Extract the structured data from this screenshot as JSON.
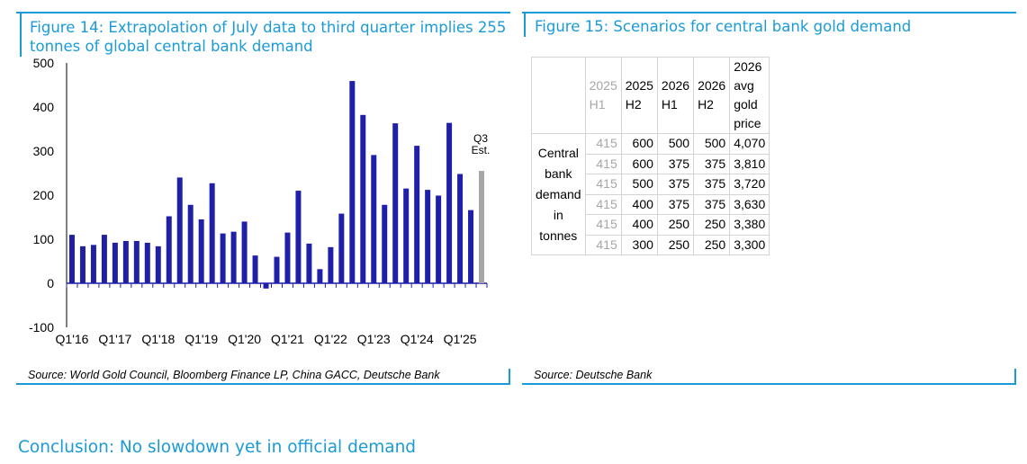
{
  "figure14": {
    "title_line1": "Figure 14: Extrapolation of July data to third quarter implies 255",
    "title_line2": "tonnes of global central bank demand",
    "source": "Source: World Gold Council, Bloomberg Finance LP, China GACC, Deutsche Bank"
  },
  "figure15": {
    "title": "Figure 15: Scenarios for central bank gold demand",
    "source": "Source: Deutsche Bank",
    "columns": [
      "2025 H1",
      "2025 H2",
      "2026 H1",
      "2026 H2",
      "2026 avg gold price"
    ],
    "row_label_lines": [
      "Central",
      "bank",
      "demand",
      "in tonnes"
    ],
    "rows": [
      [
        "415",
        "600",
        "500",
        "500",
        "4,070"
      ],
      [
        "415",
        "600",
        "375",
        "375",
        "3,810"
      ],
      [
        "415",
        "500",
        "375",
        "375",
        "3,720"
      ],
      [
        "415",
        "400",
        "375",
        "375",
        "3,630"
      ],
      [
        "415",
        "400",
        "250",
        "250",
        "3,380"
      ],
      [
        "415",
        "300",
        "250",
        "250",
        "3,300"
      ]
    ]
  },
  "conclusion": "Conclusion: No slowdown yet in official demand",
  "colors": {
    "accent": "#1a9bd7",
    "bar": "#1f1fa8",
    "estimate_bar": "#a6a6a6"
  },
  "chart_data": {
    "type": "bar",
    "categories": [
      "Q1'16",
      "Q2'16",
      "Q3'16",
      "Q4'16",
      "Q1'17",
      "Q2'17",
      "Q3'17",
      "Q4'17",
      "Q1'18",
      "Q2'18",
      "Q3'18",
      "Q4'18",
      "Q1'19",
      "Q2'19",
      "Q3'19",
      "Q4'19",
      "Q1'20",
      "Q2'20",
      "Q3'20",
      "Q4'20",
      "Q1'21",
      "Q2'21",
      "Q3'21",
      "Q4'21",
      "Q1'22",
      "Q2'22",
      "Q3'22",
      "Q4'22",
      "Q1'23",
      "Q2'23",
      "Q3'23",
      "Q4'23",
      "Q1'24",
      "Q2'24",
      "Q3'24",
      "Q4'24",
      "Q1'25",
      "Q2'25",
      "Q3'25"
    ],
    "values": [
      110,
      84,
      87,
      110,
      92,
      96,
      96,
      92,
      84,
      152,
      240,
      178,
      145,
      227,
      113,
      117,
      140,
      63,
      -12,
      60,
      115,
      210,
      90,
      32,
      82,
      158,
      459,
      382,
      291,
      178,
      363,
      215,
      312,
      212,
      199,
      364,
      248,
      166,
      255
    ],
    "estimate_index": 38,
    "estimate_label_lines": [
      "Q3",
      "Est."
    ],
    "x_tick_labels": [
      "Q1'16",
      "Q1'17",
      "Q1'18",
      "Q1'19",
      "Q1'20",
      "Q1'21",
      "Q1'22",
      "Q1'23",
      "Q1'24",
      "Q1'25"
    ],
    "y_ticks": [
      -100,
      0,
      100,
      200,
      300,
      400,
      500
    ],
    "ylim": [
      -100,
      500
    ],
    "grid": false,
    "title": "Figure 14: Extrapolation of July data to third quarter implies 255 tonnes of global central bank demand",
    "xlabel": "",
    "ylabel": ""
  }
}
